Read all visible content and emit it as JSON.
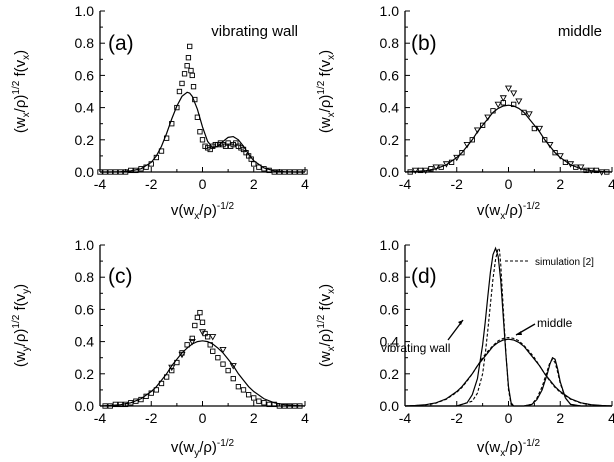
{
  "chart_data": [
    {
      "panel": "a",
      "type": "scatter",
      "letter": "(a)",
      "title": "vibrating wall",
      "xlim": [
        -4,
        4
      ],
      "ylim": [
        0,
        1.0
      ],
      "xticks": [
        -4,
        -2,
        0,
        2,
        4
      ],
      "yticks": [
        0.0,
        0.2,
        0.4,
        0.6,
        0.8,
        1.0
      ],
      "tick_labels_x": [
        "-4",
        "-2",
        "0",
        "2",
        "4"
      ],
      "tick_labels_y": [
        "0.0",
        "0.2",
        "0.4",
        "0.6",
        "0.8",
        "1.0"
      ],
      "ylabel": {
        "base1": "(w",
        "sub1": "x",
        "base2": "/ρ)",
        "sup": "1/2",
        "base3": " f(v",
        "sub2": "x",
        "base4": ")"
      },
      "xlabel": {
        "base1": "v(w",
        "sub1": "x",
        "base2": "/ρ)",
        "sup": "-1/2"
      },
      "series": [
        {
          "kind": "line",
          "x": [
            -4.0,
            -3.6,
            -3.2,
            -2.8,
            -2.4,
            -2.0,
            -1.8,
            -1.6,
            -1.4,
            -1.2,
            -1.0,
            -0.8,
            -0.6,
            -0.5,
            -0.4,
            -0.2,
            0.0,
            0.2,
            0.4,
            0.6,
            0.8,
            1.0,
            1.2,
            1.4,
            1.6,
            1.8,
            2.0,
            2.4,
            2.8,
            3.2,
            3.6,
            4.0
          ],
          "y": [
            0.0,
            0.0,
            0.002,
            0.007,
            0.02,
            0.06,
            0.1,
            0.16,
            0.24,
            0.33,
            0.41,
            0.47,
            0.495,
            0.49,
            0.47,
            0.39,
            0.28,
            0.19,
            0.15,
            0.16,
            0.19,
            0.215,
            0.22,
            0.2,
            0.16,
            0.11,
            0.07,
            0.025,
            0.007,
            0.002,
            0.0,
            0.0
          ]
        },
        {
          "kind": "points",
          "marker": "square",
          "x": [
            -4.0,
            -3.8,
            -3.6,
            -3.4,
            -3.2,
            -3.0,
            -2.8,
            -2.6,
            -2.4,
            -2.2,
            -2.0,
            -1.8,
            -1.6,
            -1.4,
            -1.2,
            -1.0,
            -0.9,
            -0.8,
            -0.7,
            -0.6,
            -0.55,
            -0.5,
            -0.45,
            -0.4,
            -0.35,
            -0.3,
            -0.2,
            -0.1,
            0.0,
            0.1,
            0.2,
            0.3,
            0.4,
            0.5,
            0.6,
            0.7,
            0.8,
            0.9,
            1.0,
            1.1,
            1.2,
            1.3,
            1.4,
            1.5,
            1.6,
            1.7,
            1.8,
            1.9,
            2.0,
            2.2,
            2.4,
            2.6,
            2.8,
            3.0,
            3.2,
            3.4,
            3.6,
            3.8,
            4.0
          ],
          "y": [
            0.0,
            0.0,
            0.0,
            0.0,
            0.0,
            0.0,
            0.01,
            0.01,
            0.02,
            0.03,
            0.05,
            0.09,
            0.13,
            0.21,
            0.3,
            0.4,
            0.5,
            0.55,
            0.61,
            0.66,
            0.71,
            0.78,
            0.63,
            0.6,
            0.53,
            0.45,
            0.34,
            0.25,
            0.2,
            0.16,
            0.15,
            0.14,
            0.16,
            0.17,
            0.17,
            0.18,
            0.17,
            0.16,
            0.18,
            0.16,
            0.17,
            0.18,
            0.16,
            0.15,
            0.14,
            0.12,
            0.1,
            0.08,
            0.05,
            0.03,
            0.02,
            0.01,
            0.0,
            0.0,
            0.0,
            0.0,
            0.0,
            0.0,
            0.0
          ]
        }
      ]
    },
    {
      "panel": "b",
      "type": "scatter",
      "letter": "(b)",
      "title": "middle",
      "xlim": [
        -4,
        4
      ],
      "ylim": [
        0,
        1.0
      ],
      "xticks": [
        -4,
        -2,
        0,
        2,
        4
      ],
      "yticks": [
        0.0,
        0.2,
        0.4,
        0.6,
        0.8,
        1.0
      ],
      "tick_labels_x": [
        "-4",
        "-2",
        "0",
        "2",
        "4"
      ],
      "tick_labels_y": [
        "0.0",
        "0.2",
        "0.4",
        "0.6",
        "0.8",
        "1.0"
      ],
      "ylabel": {
        "base1": "(w",
        "sub1": "x",
        "base2": "/ρ)",
        "sup": "1/2",
        "base3": " f(v",
        "sub2": "x",
        "base4": ")"
      },
      "xlabel": {
        "base1": "v(w",
        "sub1": "x",
        "base2": "/ρ)",
        "sup": "-1/2"
      },
      "series": [
        {
          "kind": "line",
          "x": [
            -4.0,
            -3.6,
            -3.2,
            -2.8,
            -2.4,
            -2.0,
            -1.8,
            -1.6,
            -1.4,
            -1.2,
            -1.0,
            -0.8,
            -0.6,
            -0.4,
            -0.2,
            0.0,
            0.2,
            0.4,
            0.6,
            0.8,
            1.0,
            1.2,
            1.4,
            1.6,
            1.8,
            2.0,
            2.4,
            2.8,
            3.2,
            3.6,
            4.0
          ],
          "y": [
            0.0,
            0.003,
            0.008,
            0.02,
            0.045,
            0.09,
            0.12,
            0.16,
            0.2,
            0.25,
            0.29,
            0.33,
            0.37,
            0.395,
            0.41,
            0.415,
            0.41,
            0.395,
            0.37,
            0.33,
            0.29,
            0.25,
            0.2,
            0.16,
            0.12,
            0.09,
            0.045,
            0.02,
            0.008,
            0.003,
            0.0
          ]
        },
        {
          "kind": "points",
          "marker": "square",
          "x": [
            -3.8,
            -3.4,
            -3.0,
            -2.6,
            -2.2,
            -1.8,
            -1.4,
            -1.0,
            -0.6,
            -0.2,
            0.2,
            0.6,
            1.0,
            1.4,
            1.8,
            2.2,
            2.6,
            3.0,
            3.4,
            3.8
          ],
          "y": [
            0.0,
            0.01,
            0.02,
            0.03,
            0.06,
            0.12,
            0.2,
            0.29,
            0.38,
            0.43,
            0.42,
            0.37,
            0.27,
            0.2,
            0.12,
            0.06,
            0.03,
            0.01,
            0.01,
            0.0
          ]
        },
        {
          "kind": "points",
          "marker": "triangle-down",
          "x": [
            -3.6,
            -3.2,
            -2.8,
            -2.4,
            -2.0,
            -1.6,
            -1.2,
            -0.8,
            -0.4,
            -0.2,
            0.0,
            0.2,
            0.4,
            0.8,
            1.2,
            1.6,
            2.0,
            2.4,
            2.8,
            3.2,
            3.6
          ],
          "y": [
            0.01,
            0.01,
            0.03,
            0.05,
            0.09,
            0.17,
            0.26,
            0.34,
            0.42,
            0.46,
            0.52,
            0.49,
            0.44,
            0.36,
            0.27,
            0.17,
            0.1,
            0.05,
            0.03,
            0.01,
            0.0
          ]
        }
      ]
    },
    {
      "panel": "c",
      "type": "scatter",
      "letter": "(c)",
      "title": "",
      "xlim": [
        -4,
        4
      ],
      "ylim": [
        0,
        1.0
      ],
      "xticks": [
        -4,
        -2,
        0,
        2,
        4
      ],
      "yticks": [
        0.0,
        0.2,
        0.4,
        0.6,
        0.8,
        1.0
      ],
      "tick_labels_x": [
        "-4",
        "-2",
        "0",
        "2",
        "4"
      ],
      "tick_labels_y": [
        "0.0",
        "0.2",
        "0.4",
        "0.6",
        "0.8",
        "1.0"
      ],
      "ylabel": {
        "base1": "(w",
        "sub1": "y",
        "base2": "/ρ)",
        "sup": "1/2",
        "base3": " f(v",
        "sub2": "y",
        "base4": ")"
      },
      "xlabel": {
        "base1": "v(w",
        "sub1": "y",
        "base2": "/ρ)",
        "sup": "-1/2"
      },
      "series": [
        {
          "kind": "line",
          "x": [
            -4.0,
            -3.6,
            -3.2,
            -2.8,
            -2.4,
            -2.0,
            -1.8,
            -1.6,
            -1.4,
            -1.2,
            -1.0,
            -0.8,
            -0.6,
            -0.4,
            -0.2,
            0.0,
            0.2,
            0.4,
            0.6,
            0.8,
            1.0,
            1.2,
            1.4,
            1.6,
            1.8,
            2.0,
            2.4,
            2.8,
            3.2,
            3.6,
            4.0
          ],
          "y": [
            0.0,
            0.003,
            0.008,
            0.02,
            0.045,
            0.09,
            0.12,
            0.16,
            0.2,
            0.25,
            0.29,
            0.33,
            0.36,
            0.385,
            0.4,
            0.405,
            0.4,
            0.385,
            0.36,
            0.33,
            0.29,
            0.25,
            0.2,
            0.16,
            0.12,
            0.09,
            0.045,
            0.02,
            0.008,
            0.003,
            0.0
          ]
        },
        {
          "kind": "points",
          "marker": "square",
          "x": [
            -3.8,
            -3.6,
            -3.4,
            -3.2,
            -3.0,
            -2.8,
            -2.6,
            -2.4,
            -2.2,
            -2.0,
            -1.8,
            -1.6,
            -1.4,
            -1.2,
            -1.0,
            -0.8,
            -0.6,
            -0.4,
            -0.3,
            -0.2,
            -0.1,
            0.0,
            0.1,
            0.2,
            0.3,
            0.4,
            0.6,
            0.8,
            1.0,
            1.2,
            1.4,
            1.6,
            1.8,
            2.0,
            2.2,
            2.4,
            2.6,
            2.8,
            3.0,
            3.2,
            3.4,
            3.6,
            3.8
          ],
          "y": [
            0.0,
            0.0,
            0.01,
            0.01,
            0.01,
            0.02,
            0.03,
            0.04,
            0.06,
            0.08,
            0.1,
            0.14,
            0.18,
            0.22,
            0.27,
            0.33,
            0.38,
            0.42,
            0.5,
            0.55,
            0.58,
            0.52,
            0.45,
            0.43,
            0.38,
            0.34,
            0.3,
            0.26,
            0.22,
            0.17,
            0.12,
            0.1,
            0.07,
            0.05,
            0.03,
            0.02,
            0.01,
            0.01,
            0.0,
            0.0,
            0.0,
            0.0,
            0.0
          ]
        },
        {
          "kind": "points",
          "marker": "triangle-down",
          "x": [
            -1.2,
            -0.8,
            -0.4,
            0.0,
            0.4,
            0.8,
            1.2
          ],
          "y": [
            0.24,
            0.32,
            0.4,
            0.46,
            0.43,
            0.35,
            0.25
          ]
        }
      ]
    },
    {
      "panel": "d",
      "type": "line",
      "letter": "(d)",
      "title": "",
      "legend": {
        "label": "simulation [2]",
        "placement": "top-right",
        "style": "dashed"
      },
      "annotations": [
        "vibrating wall",
        "middle"
      ],
      "xlim": [
        -4,
        4
      ],
      "ylim": [
        0,
        1.0
      ],
      "xticks": [
        -4,
        -2,
        0,
        2,
        4
      ],
      "yticks": [
        0.0,
        0.2,
        0.4,
        0.6,
        0.8,
        1.0
      ],
      "tick_labels_x": [
        "-4",
        "-2",
        "0",
        "2",
        "4"
      ],
      "tick_labels_y": [
        "0.0",
        "0.2",
        "0.4",
        "0.6",
        "0.8",
        "1.0"
      ],
      "ylabel": {
        "base1": "(w",
        "sub1": "x",
        "base2": "/ρ)",
        "sup": "1/2",
        "base3": " f(v",
        "sub2": "x",
        "base4": ")"
      },
      "xlabel": {
        "base1": "v(w",
        "sub1": "x",
        "base2": "/ρ)",
        "sup": "-1/2"
      },
      "series": [
        {
          "kind": "line",
          "style": "solid",
          "x": [
            -4.0,
            -2.0,
            -1.6,
            -1.4,
            -1.2,
            -1.0,
            -0.9,
            -0.8,
            -0.7,
            -0.6,
            -0.5,
            -0.4,
            -0.3,
            -0.2,
            -0.1,
            0.0,
            0.1,
            0.2,
            0.3,
            0.6,
            0.9,
            1.1,
            1.3,
            1.5,
            1.6,
            1.7,
            1.8,
            1.9,
            2.0,
            2.2,
            2.4,
            2.8,
            4.0
          ],
          "y": [
            0.0,
            0.0,
            0.02,
            0.07,
            0.17,
            0.38,
            0.52,
            0.68,
            0.83,
            0.94,
            0.98,
            0.93,
            0.78,
            0.55,
            0.32,
            0.12,
            0.02,
            0.0,
            0.0,
            0.0,
            0.01,
            0.04,
            0.1,
            0.2,
            0.26,
            0.3,
            0.29,
            0.23,
            0.15,
            0.05,
            0.01,
            0.0,
            0.0
          ]
        },
        {
          "kind": "line",
          "style": "dashed",
          "x": [
            -4.0,
            -2.0,
            -1.4,
            -1.2,
            -1.0,
            -0.9,
            -0.8,
            -0.7,
            -0.6,
            -0.5,
            -0.4,
            -0.35,
            -0.3,
            -0.2,
            -0.1,
            0.0,
            0.1,
            0.2,
            0.3,
            0.6,
            0.9,
            1.1,
            1.3,
            1.5,
            1.6,
            1.7,
            1.8,
            1.9,
            2.0,
            2.2,
            2.4,
            2.8,
            4.0
          ],
          "y": [
            0.0,
            0.0,
            0.03,
            0.08,
            0.2,
            0.32,
            0.47,
            0.63,
            0.79,
            0.91,
            0.98,
            0.97,
            0.88,
            0.6,
            0.33,
            0.1,
            0.01,
            0.0,
            0.0,
            0.0,
            0.01,
            0.05,
            0.12,
            0.22,
            0.27,
            0.29,
            0.27,
            0.21,
            0.14,
            0.05,
            0.01,
            0.0,
            0.0
          ]
        },
        {
          "kind": "line",
          "style": "solid",
          "x": [
            -4.0,
            -3.6,
            -3.2,
            -2.8,
            -2.4,
            -2.0,
            -1.8,
            -1.6,
            -1.4,
            -1.2,
            -1.0,
            -0.8,
            -0.6,
            -0.4,
            -0.2,
            0.0,
            0.2,
            0.4,
            0.6,
            0.8,
            1.0,
            1.2,
            1.4,
            1.6,
            1.8,
            2.0,
            2.4,
            2.8,
            3.2,
            3.6,
            4.0
          ],
          "y": [
            0.0,
            0.003,
            0.008,
            0.02,
            0.045,
            0.09,
            0.12,
            0.16,
            0.2,
            0.25,
            0.29,
            0.33,
            0.37,
            0.395,
            0.41,
            0.415,
            0.41,
            0.395,
            0.37,
            0.33,
            0.29,
            0.25,
            0.2,
            0.16,
            0.12,
            0.09,
            0.045,
            0.02,
            0.008,
            0.003,
            0.0
          ]
        },
        {
          "kind": "line",
          "style": "dashed",
          "x": [
            -4.0,
            -3.6,
            -3.2,
            -2.8,
            -2.4,
            -2.0,
            -1.8,
            -1.6,
            -1.4,
            -1.2,
            -1.0,
            -0.8,
            -0.6,
            -0.4,
            -0.2,
            0.0,
            0.2,
            0.4,
            0.6,
            0.8,
            1.0,
            1.2,
            1.4,
            1.6,
            1.8,
            2.0,
            2.4,
            2.8,
            3.2,
            3.6,
            4.0
          ],
          "y": [
            0.0,
            0.002,
            0.007,
            0.018,
            0.042,
            0.085,
            0.115,
            0.155,
            0.2,
            0.25,
            0.3,
            0.34,
            0.375,
            0.405,
            0.42,
            0.425,
            0.42,
            0.405,
            0.375,
            0.34,
            0.3,
            0.25,
            0.2,
            0.155,
            0.115,
            0.085,
            0.042,
            0.018,
            0.007,
            0.002,
            0.0
          ]
        }
      ]
    }
  ]
}
